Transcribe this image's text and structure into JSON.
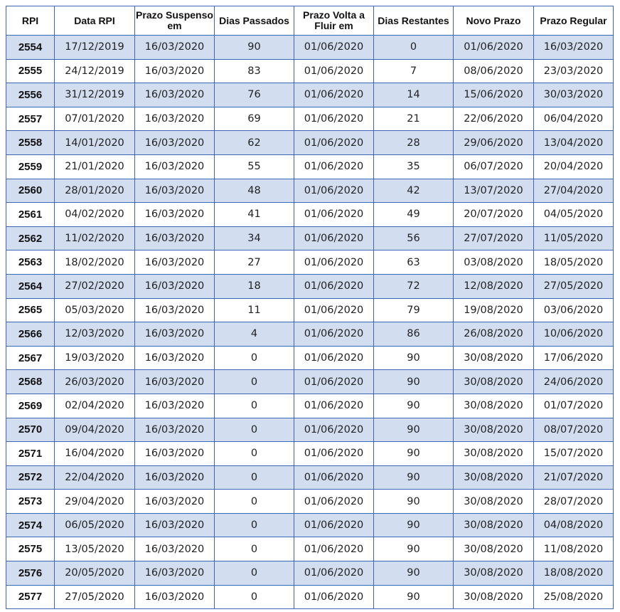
{
  "table": {
    "headers": [
      "RPI",
      "Data RPI",
      "Prazo Suspenso em",
      "Dias Passados",
      "Prazo Volta a Fluir em",
      "Dias Restantes",
      "Novo Prazo",
      "Prazo Regular"
    ],
    "rows": [
      [
        "2554",
        "17/12/2019",
        "16/03/2020",
        "90",
        "01/06/2020",
        "0",
        "01/06/2020",
        "16/03/2020"
      ],
      [
        "2555",
        "24/12/2019",
        "16/03/2020",
        "83",
        "01/06/2020",
        "7",
        "08/06/2020",
        "23/03/2020"
      ],
      [
        "2556",
        "31/12/2019",
        "16/03/2020",
        "76",
        "01/06/2020",
        "14",
        "15/06/2020",
        "30/03/2020"
      ],
      [
        "2557",
        "07/01/2020",
        "16/03/2020",
        "69",
        "01/06/2020",
        "21",
        "22/06/2020",
        "06/04/2020"
      ],
      [
        "2558",
        "14/01/2020",
        "16/03/2020",
        "62",
        "01/06/2020",
        "28",
        "29/06/2020",
        "13/04/2020"
      ],
      [
        "2559",
        "21/01/2020",
        "16/03/2020",
        "55",
        "01/06/2020",
        "35",
        "06/07/2020",
        "20/04/2020"
      ],
      [
        "2560",
        "28/01/2020",
        "16/03/2020",
        "48",
        "01/06/2020",
        "42",
        "13/07/2020",
        "27/04/2020"
      ],
      [
        "2561",
        "04/02/2020",
        "16/03/2020",
        "41",
        "01/06/2020",
        "49",
        "20/07/2020",
        "04/05/2020"
      ],
      [
        "2562",
        "11/02/2020",
        "16/03/2020",
        "34",
        "01/06/2020",
        "56",
        "27/07/2020",
        "11/05/2020"
      ],
      [
        "2563",
        "18/02/2020",
        "16/03/2020",
        "27",
        "01/06/2020",
        "63",
        "03/08/2020",
        "18/05/2020"
      ],
      [
        "2564",
        "27/02/2020",
        "16/03/2020",
        "18",
        "01/06/2020",
        "72",
        "12/08/2020",
        "27/05/2020"
      ],
      [
        "2565",
        "05/03/2020",
        "16/03/2020",
        "11",
        "01/06/2020",
        "79",
        "19/08/2020",
        "03/06/2020"
      ],
      [
        "2566",
        "12/03/2020",
        "16/03/2020",
        "4",
        "01/06/2020",
        "86",
        "26/08/2020",
        "10/06/2020"
      ],
      [
        "2567",
        "19/03/2020",
        "16/03/2020",
        "0",
        "01/06/2020",
        "90",
        "30/08/2020",
        "17/06/2020"
      ],
      [
        "2568",
        "26/03/2020",
        "16/03/2020",
        "0",
        "01/06/2020",
        "90",
        "30/08/2020",
        "24/06/2020"
      ],
      [
        "2569",
        "02/04/2020",
        "16/03/2020",
        "0",
        "01/06/2020",
        "90",
        "30/08/2020",
        "01/07/2020"
      ],
      [
        "2570",
        "09/04/2020",
        "16/03/2020",
        "0",
        "01/06/2020",
        "90",
        "30/08/2020",
        "08/07/2020"
      ],
      [
        "2571",
        "16/04/2020",
        "16/03/2020",
        "0",
        "01/06/2020",
        "90",
        "30/08/2020",
        "15/07/2020"
      ],
      [
        "2572",
        "22/04/2020",
        "16/03/2020",
        "0",
        "01/06/2020",
        "90",
        "30/08/2020",
        "21/07/2020"
      ],
      [
        "2573",
        "29/04/2020",
        "16/03/2020",
        "0",
        "01/06/2020",
        "90",
        "30/08/2020",
        "28/07/2020"
      ],
      [
        "2574",
        "06/05/2020",
        "16/03/2020",
        "0",
        "01/06/2020",
        "90",
        "30/08/2020",
        "04/08/2020"
      ],
      [
        "2575",
        "13/05/2020",
        "16/03/2020",
        "0",
        "01/06/2020",
        "90",
        "30/08/2020",
        "11/08/2020"
      ],
      [
        "2576",
        "20/05/2020",
        "16/03/2020",
        "0",
        "01/06/2020",
        "90",
        "30/08/2020",
        "18/08/2020"
      ],
      [
        "2577",
        "27/05/2020",
        "16/03/2020",
        "0",
        "01/06/2020",
        "90",
        "30/08/2020",
        "25/08/2020"
      ]
    ]
  },
  "colors": {
    "border": "#3a67b8",
    "row_shade": "#d2ddf0",
    "row_plain": "#ffffff"
  }
}
